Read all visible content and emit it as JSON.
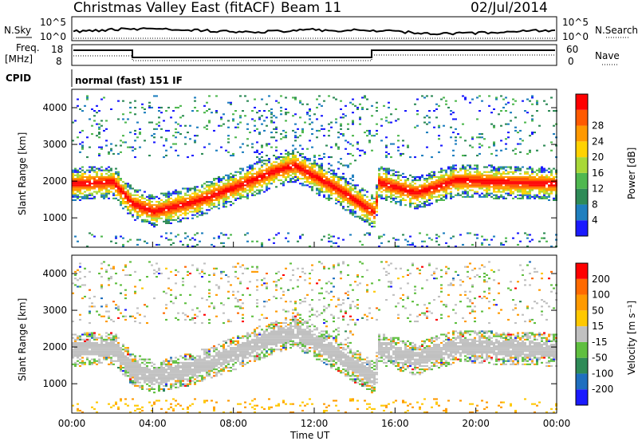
{
  "header": {
    "station_title": "Christmas Valley East (fitACF)",
    "beam_label": "Beam 11",
    "date": "02/Jul/2014"
  },
  "top_panels": {
    "nsky_label": "N.Sky",
    "nsky_ticks": [
      "10^5",
      "10^0"
    ],
    "nsearch_label": "N.Search",
    "nsearch_ticks": [
      "10^5",
      "10^0"
    ],
    "freq_label_line1": "Freq.",
    "freq_label_line2": "[MHz]",
    "freq_ticks": [
      "18",
      "8"
    ],
    "nave_label": "Nave",
    "nave_ticks": [
      "60",
      "0"
    ],
    "cpid_label": "CPID",
    "cpid_value": "normal (fast) 151 IF"
  },
  "chart_data": [
    {
      "type": "heatmap",
      "panel": "power",
      "ylabel": "Slant Range [km]",
      "y_ticks": [
        "1000",
        "2000",
        "3000",
        "4000"
      ],
      "ylim": [
        200,
        4500
      ],
      "xlim_hours": [
        0,
        24
      ],
      "colorbar_label": "Power [dB]",
      "colorbar_ticks": [
        "4",
        "8",
        "12",
        "16",
        "20",
        "24",
        "28"
      ],
      "colorbar_range": [
        0,
        32
      ],
      "colors": [
        "#1a1aff",
        "#1f7fbf",
        "#2e8b57",
        "#4fb84f",
        "#a8d838",
        "#ffd200",
        "#ff9900",
        "#ff5a00",
        "#ff0000"
      ],
      "dominant_band_km": [
        {
          "hour": 0,
          "range": 1900
        },
        {
          "hour": 2,
          "range": 1950
        },
        {
          "hour": 3,
          "range": 1350
        },
        {
          "hour": 4,
          "range": 1150
        },
        {
          "hour": 6,
          "range": 1400
        },
        {
          "hour": 8,
          "range": 1800
        },
        {
          "hour": 10,
          "range": 2250
        },
        {
          "hour": 11,
          "range": 2400
        },
        {
          "hour": 13,
          "range": 1800
        },
        {
          "hour": 15,
          "range": 1100
        },
        {
          "hour": 15.1,
          "range": 1950
        },
        {
          "hour": 17,
          "range": 1650
        },
        {
          "hour": 19,
          "range": 2000
        },
        {
          "hour": 21,
          "range": 1950
        },
        {
          "hour": 24,
          "range": 1900
        }
      ]
    },
    {
      "type": "heatmap",
      "panel": "velocity",
      "ylabel": "Slant Range [km]",
      "y_ticks": [
        "1000",
        "2000",
        "3000",
        "4000"
      ],
      "ylim": [
        200,
        4500
      ],
      "xlim_hours": [
        0,
        24
      ],
      "xlabel": "Time UT",
      "x_ticks": [
        "00:00",
        "04:00",
        "08:00",
        "12:00",
        "16:00",
        "20:00",
        "00:00"
      ],
      "colorbar_label": "Velocity [m s⁻¹]",
      "colorbar_ticks": [
        "200",
        "100",
        "50",
        "15",
        "-15",
        "-50",
        "-100",
        "-200"
      ],
      "colors": [
        "#ff0000",
        "#ff6a00",
        "#ff9a00",
        "#ffc800",
        "#c0c0c0",
        "#5fbf3f",
        "#2e8b57",
        "#1f6fbf",
        "#1a1aff"
      ]
    }
  ]
}
